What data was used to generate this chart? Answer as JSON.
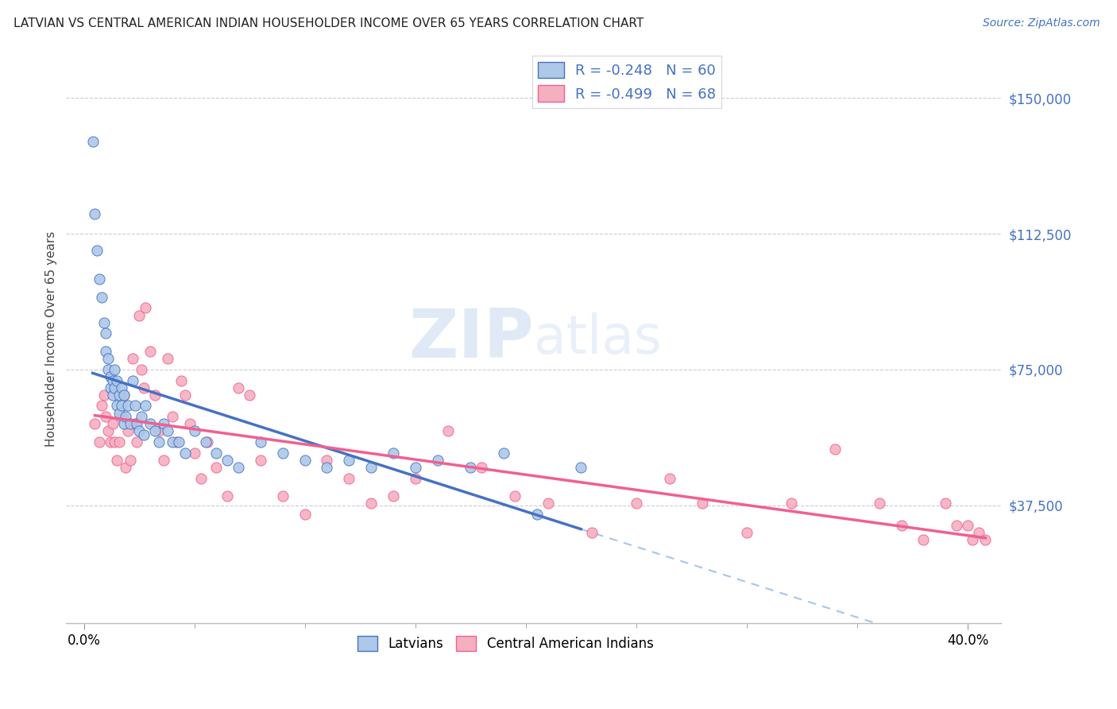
{
  "title": "LATVIAN VS CENTRAL AMERICAN INDIAN HOUSEHOLDER INCOME OVER 65 YEARS CORRELATION CHART",
  "source": "Source: ZipAtlas.com",
  "ylabel": "Householder Income Over 65 years",
  "xlabel_ticks_show": [
    "0.0%",
    "40.0%"
  ],
  "xlabel_ticks_pos": [
    0.0,
    0.4
  ],
  "ylabel_ticks": [
    "$37,500",
    "$75,000",
    "$112,500",
    "$150,000"
  ],
  "ylabel_vals": [
    37500,
    75000,
    112500,
    150000
  ],
  "xlim": [
    -0.008,
    0.415
  ],
  "ylim": [
    5000,
    162000
  ],
  "latvian_R": -0.248,
  "latvian_N": 60,
  "central_R": -0.499,
  "central_N": 68,
  "latvian_color": "#adc8e8",
  "central_color": "#f5b0c0",
  "latvian_line_color": "#4472c4",
  "central_line_color": "#f06090",
  "dashed_line_color": "#aac4e8",
  "legend_label_latvian": "Latvians",
  "legend_label_central": "Central American Indians",
  "watermark_zip": "ZIP",
  "watermark_atlas": "atlas",
  "latvian_scatter_x": [
    0.004,
    0.005,
    0.006,
    0.007,
    0.008,
    0.009,
    0.01,
    0.01,
    0.011,
    0.011,
    0.012,
    0.012,
    0.013,
    0.013,
    0.014,
    0.014,
    0.015,
    0.015,
    0.016,
    0.016,
    0.017,
    0.017,
    0.018,
    0.018,
    0.019,
    0.02,
    0.021,
    0.022,
    0.023,
    0.024,
    0.025,
    0.026,
    0.027,
    0.028,
    0.03,
    0.032,
    0.034,
    0.036,
    0.038,
    0.04,
    0.043,
    0.046,
    0.05,
    0.055,
    0.06,
    0.065,
    0.07,
    0.08,
    0.09,
    0.1,
    0.11,
    0.12,
    0.13,
    0.14,
    0.15,
    0.16,
    0.175,
    0.19,
    0.205,
    0.225
  ],
  "latvian_scatter_y": [
    138000,
    118000,
    108000,
    100000,
    95000,
    88000,
    85000,
    80000,
    78000,
    75000,
    73000,
    70000,
    72000,
    68000,
    75000,
    70000,
    72000,
    65000,
    68000,
    63000,
    70000,
    65000,
    60000,
    68000,
    62000,
    65000,
    60000,
    72000,
    65000,
    60000,
    58000,
    62000,
    57000,
    65000,
    60000,
    58000,
    55000,
    60000,
    58000,
    55000,
    55000,
    52000,
    58000,
    55000,
    52000,
    50000,
    48000,
    55000,
    52000,
    50000,
    48000,
    50000,
    48000,
    52000,
    48000,
    50000,
    48000,
    52000,
    35000,
    48000
  ],
  "central_scatter_x": [
    0.005,
    0.007,
    0.008,
    0.009,
    0.01,
    0.011,
    0.012,
    0.013,
    0.014,
    0.015,
    0.016,
    0.017,
    0.018,
    0.019,
    0.02,
    0.021,
    0.022,
    0.023,
    0.024,
    0.025,
    0.026,
    0.027,
    0.028,
    0.03,
    0.032,
    0.034,
    0.036,
    0.038,
    0.04,
    0.042,
    0.044,
    0.046,
    0.048,
    0.05,
    0.053,
    0.056,
    0.06,
    0.065,
    0.07,
    0.075,
    0.08,
    0.09,
    0.1,
    0.11,
    0.12,
    0.13,
    0.14,
    0.15,
    0.165,
    0.18,
    0.195,
    0.21,
    0.23,
    0.25,
    0.265,
    0.28,
    0.3,
    0.32,
    0.34,
    0.36,
    0.37,
    0.38,
    0.39,
    0.395,
    0.4,
    0.402,
    0.405,
    0.408
  ],
  "central_scatter_y": [
    60000,
    55000,
    65000,
    68000,
    62000,
    58000,
    55000,
    60000,
    55000,
    50000,
    55000,
    62000,
    68000,
    48000,
    58000,
    50000,
    78000,
    60000,
    55000,
    90000,
    75000,
    70000,
    92000,
    80000,
    68000,
    58000,
    50000,
    78000,
    62000,
    55000,
    72000,
    68000,
    60000,
    52000,
    45000,
    55000,
    48000,
    40000,
    70000,
    68000,
    50000,
    40000,
    35000,
    50000,
    45000,
    38000,
    40000,
    45000,
    58000,
    48000,
    40000,
    38000,
    30000,
    38000,
    45000,
    38000,
    30000,
    38000,
    53000,
    38000,
    32000,
    28000,
    38000,
    32000,
    32000,
    28000,
    30000,
    28000
  ]
}
